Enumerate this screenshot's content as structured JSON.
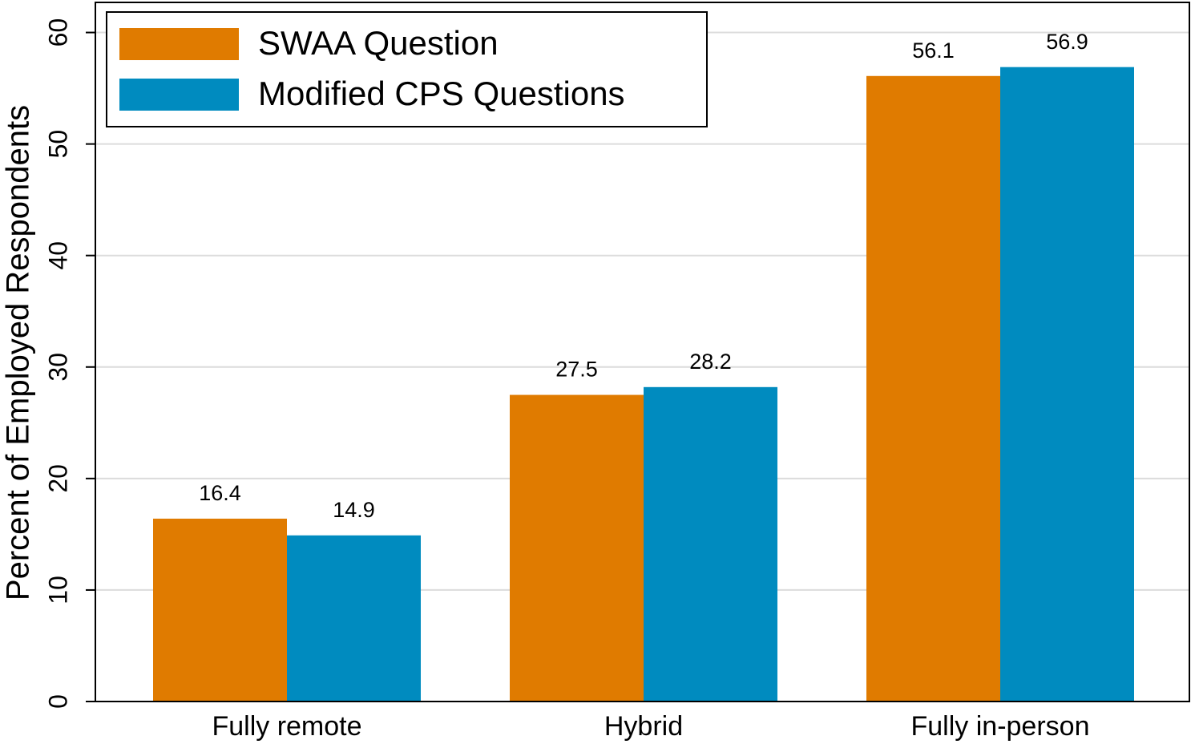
{
  "chart_data": {
    "type": "bar",
    "y_label": "Percent of Employed Respondents",
    "categories": [
      "Fully remote",
      "Hybrid",
      "Fully in-person"
    ],
    "series": [
      {
        "name": "SWAA Question",
        "color": "#e07b00",
        "values": [
          16.4,
          27.5,
          56.1
        ]
      },
      {
        "name": "Modified CPS Questions",
        "color": "#008bbf",
        "values": [
          14.9,
          28.2,
          56.9
        ]
      }
    ],
    "ylim": [
      0,
      62.7
    ],
    "yticks": [
      0,
      10,
      20,
      30,
      40,
      50,
      60
    ],
    "grid": true,
    "legend": "upper left"
  }
}
